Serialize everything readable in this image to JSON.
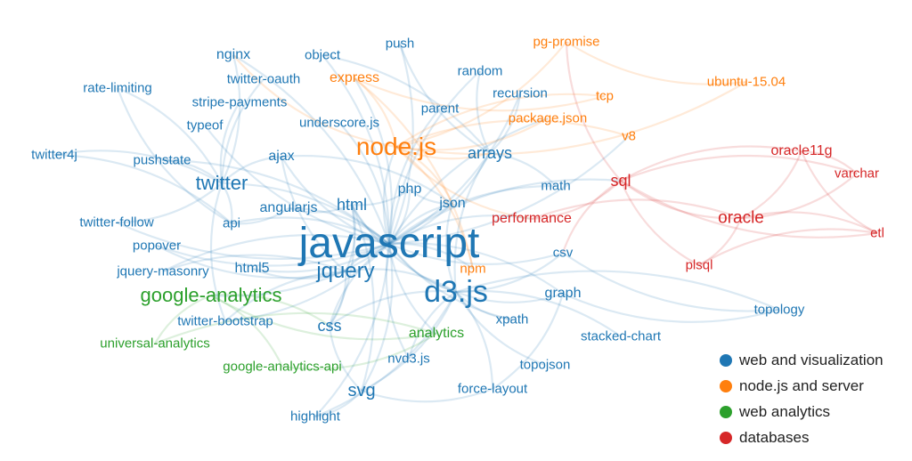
{
  "colors": {
    "web": "#1f77b4",
    "node": "#ff7f0e",
    "analytics": "#2ca02c",
    "db": "#d62728"
  },
  "legend": [
    {
      "label": "web and visualization",
      "group": "web"
    },
    {
      "label": "node.js and server",
      "group": "node"
    },
    {
      "label": "web analytics",
      "group": "analytics"
    },
    {
      "label": "databases",
      "group": "db"
    }
  ],
  "nodes": [
    {
      "label": "javascript",
      "group": "web",
      "weight": 48
    },
    {
      "label": "d3.js",
      "group": "web",
      "weight": 34
    },
    {
      "label": "node.js",
      "group": "node",
      "weight": 28
    },
    {
      "label": "jquery",
      "group": "web",
      "weight": 24
    },
    {
      "label": "google-analytics",
      "group": "analytics",
      "weight": 22
    },
    {
      "label": "twitter",
      "group": "web",
      "weight": 22
    },
    {
      "label": "svg",
      "group": "web",
      "weight": 20
    },
    {
      "label": "oracle",
      "group": "db",
      "weight": 19
    },
    {
      "label": "html",
      "group": "web",
      "weight": 18
    },
    {
      "label": "arrays",
      "group": "web",
      "weight": 18
    },
    {
      "label": "css",
      "group": "web",
      "weight": 18
    },
    {
      "label": "sql",
      "group": "db",
      "weight": 18
    },
    {
      "label": "express",
      "group": "node",
      "weight": 16
    },
    {
      "label": "nginx",
      "group": "web",
      "weight": 16
    },
    {
      "label": "oracle11g",
      "group": "db",
      "weight": 16
    },
    {
      "label": "analytics",
      "group": "analytics",
      "weight": 16
    },
    {
      "label": "html5",
      "group": "web",
      "weight": 16
    },
    {
      "label": "ajax",
      "group": "web",
      "weight": 16
    },
    {
      "label": "php",
      "group": "web",
      "weight": 16
    },
    {
      "label": "json",
      "group": "web",
      "weight": 16
    },
    {
      "label": "angularjs",
      "group": "web",
      "weight": 16
    },
    {
      "label": "graph",
      "group": "web",
      "weight": 16
    },
    {
      "label": "performance",
      "group": "db",
      "weight": 16
    },
    {
      "label": "math",
      "group": "web",
      "weight": 15
    },
    {
      "label": "npm",
      "group": "node",
      "weight": 15
    },
    {
      "label": "api",
      "group": "web",
      "weight": 15
    },
    {
      "label": "push",
      "group": "web",
      "weight": 15
    },
    {
      "label": "object",
      "group": "web",
      "weight": 15
    },
    {
      "label": "pg-promise",
      "group": "node",
      "weight": 15
    },
    {
      "label": "random",
      "group": "web",
      "weight": 15
    },
    {
      "label": "ubuntu-15.04",
      "group": "node",
      "weight": 15
    },
    {
      "label": "twitter-oauth",
      "group": "web",
      "weight": 15
    },
    {
      "label": "rate-limiting",
      "group": "web",
      "weight": 15
    },
    {
      "label": "recursion",
      "group": "web",
      "weight": 15
    },
    {
      "label": "tcp",
      "group": "node",
      "weight": 15
    },
    {
      "label": "stripe-payments",
      "group": "web",
      "weight": 15
    },
    {
      "label": "parent",
      "group": "web",
      "weight": 15
    },
    {
      "label": "typeof",
      "group": "web",
      "weight": 15
    },
    {
      "label": "underscore.js",
      "group": "web",
      "weight": 15
    },
    {
      "label": "package.json",
      "group": "node",
      "weight": 15
    },
    {
      "label": "v8",
      "group": "node",
      "weight": 15
    },
    {
      "label": "twitter4j",
      "group": "web",
      "weight": 15
    },
    {
      "label": "pushstate",
      "group": "web",
      "weight": 15
    },
    {
      "label": "varchar",
      "group": "db",
      "weight": 15
    },
    {
      "label": "twitter-follow",
      "group": "web",
      "weight": 15
    },
    {
      "label": "etl",
      "group": "db",
      "weight": 15
    },
    {
      "label": "popover",
      "group": "web",
      "weight": 15
    },
    {
      "label": "csv",
      "group": "web",
      "weight": 15
    },
    {
      "label": "jquery-masonry",
      "group": "web",
      "weight": 15
    },
    {
      "label": "plsql",
      "group": "db",
      "weight": 15
    },
    {
      "label": "topology",
      "group": "web",
      "weight": 15
    },
    {
      "label": "twitter-bootstrap",
      "group": "web",
      "weight": 15
    },
    {
      "label": "xpath",
      "group": "web",
      "weight": 15
    },
    {
      "label": "universal-analytics",
      "group": "analytics",
      "weight": 15
    },
    {
      "label": "stacked-chart",
      "group": "web",
      "weight": 15
    },
    {
      "label": "google-analytics-api",
      "group": "analytics",
      "weight": 15
    },
    {
      "label": "nvd3.js",
      "group": "web",
      "weight": 15
    },
    {
      "label": "topojson",
      "group": "web",
      "weight": 15
    },
    {
      "label": "force-layout",
      "group": "web",
      "weight": 15
    },
    {
      "label": "highlight",
      "group": "web",
      "weight": 15
    }
  ],
  "edges": [
    [
      "javascript",
      "d3.js"
    ],
    [
      "javascript",
      "node.js"
    ],
    [
      "javascript",
      "jquery"
    ],
    [
      "javascript",
      "html"
    ],
    [
      "javascript",
      "css"
    ],
    [
      "javascript",
      "svg"
    ],
    [
      "javascript",
      "twitter"
    ],
    [
      "javascript",
      "google-analytics"
    ],
    [
      "javascript",
      "arrays"
    ],
    [
      "javascript",
      "json"
    ],
    [
      "javascript",
      "php"
    ],
    [
      "javascript",
      "ajax"
    ],
    [
      "javascript",
      "angularjs"
    ],
    [
      "javascript",
      "html5"
    ],
    [
      "javascript",
      "api"
    ],
    [
      "javascript",
      "math"
    ],
    [
      "javascript",
      "recursion"
    ],
    [
      "javascript",
      "random"
    ],
    [
      "javascript",
      "object"
    ],
    [
      "javascript",
      "typeof"
    ],
    [
      "javascript",
      "underscore.js"
    ],
    [
      "javascript",
      "parent"
    ],
    [
      "javascript",
      "push"
    ],
    [
      "javascript",
      "performance"
    ],
    [
      "javascript",
      "csv"
    ],
    [
      "javascript",
      "graph"
    ],
    [
      "javascript",
      "xpath"
    ],
    [
      "javascript",
      "popover"
    ],
    [
      "javascript",
      "jquery-masonry"
    ],
    [
      "javascript",
      "twitter-bootstrap"
    ],
    [
      "javascript",
      "pushstate"
    ],
    [
      "javascript",
      "twitter-follow"
    ],
    [
      "javascript",
      "nvd3.js"
    ],
    [
      "javascript",
      "highlight"
    ],
    [
      "javascript",
      "analytics"
    ],
    [
      "javascript",
      "sql"
    ],
    [
      "javascript",
      "express"
    ],
    [
      "javascript",
      "npm"
    ],
    [
      "javascript",
      "v8"
    ],
    [
      "javascript",
      "package.json"
    ],
    [
      "javascript",
      "nginx"
    ],
    [
      "d3.js",
      "svg"
    ],
    [
      "d3.js",
      "nvd3.js"
    ],
    [
      "d3.js",
      "force-layout"
    ],
    [
      "d3.js",
      "topojson"
    ],
    [
      "d3.js",
      "stacked-chart"
    ],
    [
      "d3.js",
      "graph"
    ],
    [
      "d3.js",
      "topology"
    ],
    [
      "d3.js",
      "csv"
    ],
    [
      "d3.js",
      "json"
    ],
    [
      "d3.js",
      "xpath"
    ],
    [
      "d3.js",
      "highlight"
    ],
    [
      "d3.js",
      "css"
    ],
    [
      "d3.js",
      "html"
    ],
    [
      "d3.js",
      "jquery"
    ],
    [
      "d3.js",
      "arrays"
    ],
    [
      "node.js",
      "express"
    ],
    [
      "node.js",
      "npm"
    ],
    [
      "node.js",
      "pg-promise"
    ],
    [
      "node.js",
      "tcp"
    ],
    [
      "node.js",
      "package.json"
    ],
    [
      "node.js",
      "v8"
    ],
    [
      "node.js",
      "ubuntu-15.04"
    ],
    [
      "node.js",
      "nginx"
    ],
    [
      "node.js",
      "performance"
    ],
    [
      "node.js",
      "json"
    ],
    [
      "node.js",
      "arrays"
    ],
    [
      "twitter",
      "twitter-oauth"
    ],
    [
      "twitter",
      "twitter4j"
    ],
    [
      "twitter",
      "twitter-follow"
    ],
    [
      "twitter",
      "rate-limiting"
    ],
    [
      "twitter",
      "api"
    ],
    [
      "twitter",
      "pushstate"
    ],
    [
      "twitter",
      "stripe-payments"
    ],
    [
      "twitter",
      "twitter-bootstrap"
    ],
    [
      "twitter",
      "ajax"
    ],
    [
      "twitter",
      "nginx"
    ],
    [
      "jquery",
      "ajax"
    ],
    [
      "jquery",
      "html"
    ],
    [
      "jquery",
      "css"
    ],
    [
      "jquery",
      "jquery-masonry"
    ],
    [
      "jquery",
      "popover"
    ],
    [
      "jquery",
      "twitter-bootstrap"
    ],
    [
      "jquery",
      "html5"
    ],
    [
      "google-analytics",
      "universal-analytics"
    ],
    [
      "google-analytics",
      "google-analytics-api"
    ],
    [
      "google-analytics",
      "analytics"
    ],
    [
      "google-analytics",
      "css"
    ],
    [
      "analytics",
      "universal-analytics"
    ],
    [
      "analytics",
      "google-analytics-api"
    ],
    [
      "sql",
      "oracle"
    ],
    [
      "sql",
      "oracle11g"
    ],
    [
      "sql",
      "plsql"
    ],
    [
      "sql",
      "varchar"
    ],
    [
      "sql",
      "etl"
    ],
    [
      "sql",
      "performance"
    ],
    [
      "sql",
      "csv"
    ],
    [
      "sql",
      "pg-promise"
    ],
    [
      "oracle",
      "oracle11g"
    ],
    [
      "oracle",
      "plsql"
    ],
    [
      "oracle",
      "varchar"
    ],
    [
      "oracle",
      "etl"
    ],
    [
      "oracle",
      "performance"
    ],
    [
      "oracle11g",
      "varchar"
    ],
    [
      "oracle11g",
      "etl"
    ],
    [
      "plsql",
      "etl"
    ],
    [
      "pg-promise",
      "ubuntu-15.04"
    ],
    [
      "express",
      "npm"
    ],
    [
      "express",
      "tcp"
    ],
    [
      "svg",
      "css"
    ],
    [
      "svg",
      "html"
    ],
    [
      "svg",
      "highlight"
    ],
    [
      "svg",
      "force-layout"
    ],
    [
      "html",
      "css"
    ],
    [
      "html",
      "php"
    ],
    [
      "json",
      "php"
    ],
    [
      "json",
      "ajax"
    ],
    [
      "arrays",
      "math"
    ],
    [
      "arrays",
      "recursion"
    ],
    [
      "arrays",
      "random"
    ],
    [
      "arrays",
      "object"
    ],
    [
      "arrays",
      "push"
    ],
    [
      "angularjs",
      "html"
    ],
    [
      "angularjs",
      "api"
    ],
    [
      "rate-limiting",
      "api"
    ],
    [
      "twitter4j",
      "api"
    ],
    [
      "graph",
      "topology"
    ],
    [
      "graph",
      "force-layout"
    ],
    [
      "csv",
      "topology"
    ]
  ]
}
